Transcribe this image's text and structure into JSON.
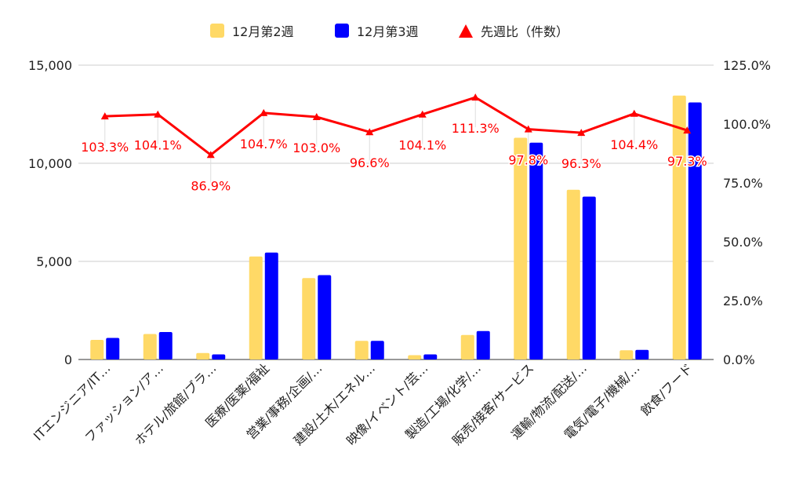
{
  "chart_data": {
    "type": "bar",
    "categories": [
      "ITエンジニア/IT…",
      "ファッション/ア…",
      "ホテル/旅館/ブラ…",
      "医療/医薬/福祉",
      "営業/事務/企画/…",
      "建設/土木/エネル…",
      "映像/イベント/芸…",
      "製造/工場/化学/…",
      "販売/接客/サービス",
      "運輸/物流/配送/…",
      "電気/電子/機械/…",
      "飲食/フード"
    ],
    "series": [
      {
        "name": "12月第2週",
        "type": "bar",
        "axis": "left",
        "color": "#FFD966",
        "values": [
          1000,
          1300,
          330,
          5250,
          4150,
          950,
          220,
          1250,
          11300,
          8650,
          470,
          13450
        ]
      },
      {
        "name": "12月第3週",
        "type": "bar",
        "axis": "left",
        "color": "#0000FF",
        "values": [
          1100,
          1400,
          260,
          5450,
          4300,
          950,
          260,
          1450,
          11050,
          8300,
          490,
          13100
        ]
      },
      {
        "name": "先週比（件数）",
        "type": "line",
        "axis": "right",
        "color": "#FF0000",
        "values": [
          103.3,
          104.1,
          86.9,
          104.7,
          103.0,
          96.6,
          104.1,
          111.3,
          97.8,
          96.3,
          104.4,
          97.3
        ],
        "labels": [
          "103.3%",
          "104.1%",
          "86.9%",
          "104.7%",
          "103.0%",
          "96.6%",
          "104.1%",
          "111.3%",
          "97.8%",
          "96.3%",
          "104.4%",
          "97.3%"
        ]
      }
    ],
    "y_left": {
      "lim": [
        0,
        15000
      ],
      "ticks": [
        "0",
        "5,000",
        "10,000",
        "15,000"
      ]
    },
    "y_right": {
      "lim": [
        0,
        125
      ],
      "ticks": [
        "0.0%",
        "25.0%",
        "50.0%",
        "75.0%",
        "100.0%",
        "125.0%"
      ]
    },
    "grid": true,
    "legend_position": "top",
    "title": "",
    "xlabel": "",
    "ylabel": ""
  }
}
